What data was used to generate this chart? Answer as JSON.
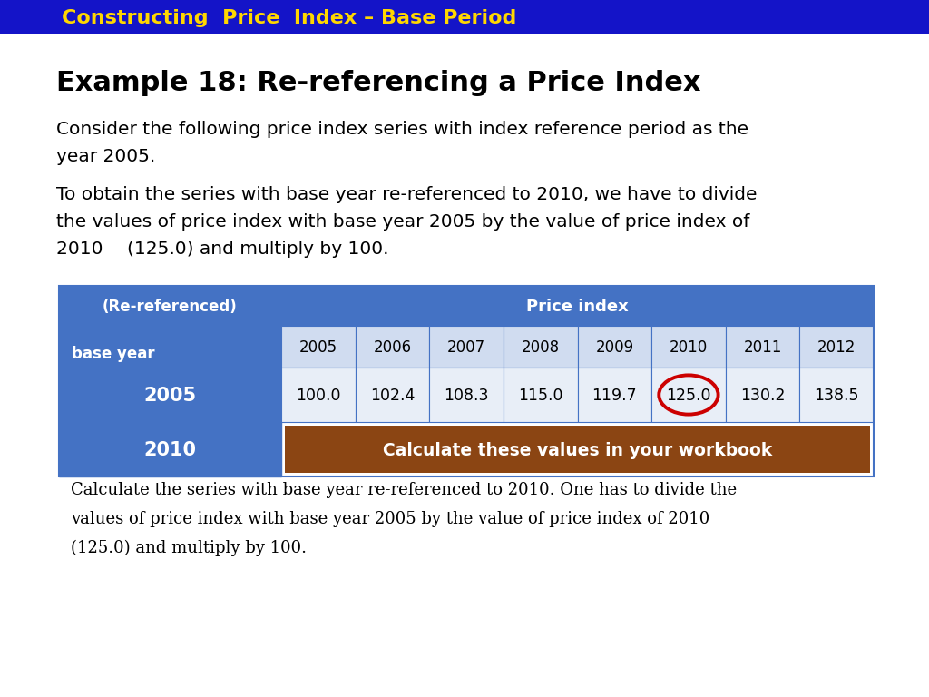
{
  "title_bar_text": "Constructing  Price  Index – Base Period",
  "title_bar_bg": "#1414c8",
  "title_bar_text_color": "#FFD700",
  "example_title": "Example 18: Re-referencing a Price Index",
  "para1": "Consider the following price index series with index reference period as the\nyear 2005.",
  "para2_line1": "To obtain the series with base year re-referenced to 2010, we have to divide",
  "para2_line2": "the values of price index with base year 2005 by the value of price index of",
  "para2_line3": "2010  (125.0) and multiply by 100.",
  "table_header1": "(Re-referenced)",
  "table_header2": "Price index",
  "table_subheader": "base year",
  "years": [
    "2005",
    "2006",
    "2007",
    "2008",
    "2009",
    "2010",
    "2011",
    "2012"
  ],
  "row1_label": "2005",
  "row1_values": [
    "100.0",
    "102.4",
    "108.3",
    "115.0",
    "119.7",
    "125.0",
    "130.2",
    "138.5"
  ],
  "row2_label": "2010",
  "row2_text": "Calculate these values in your workbook",
  "circled_col": 5,
  "header_bg": "#4472C4",
  "row1_bg": "#E8EEF7",
  "row2_cell_bg": "#8B4513",
  "label_col_bg": "#4472C4",
  "circle_color": "#CC0000",
  "footer_line1": "Calculate the series with base year re-referenced to 2010. One has to divide the",
  "footer_line2": "values of price index with base year 2005 by the value of price index of 2010",
  "footer_line3": "(125.0) and multiply by 100.",
  "bg_color": "#FFFFFF"
}
